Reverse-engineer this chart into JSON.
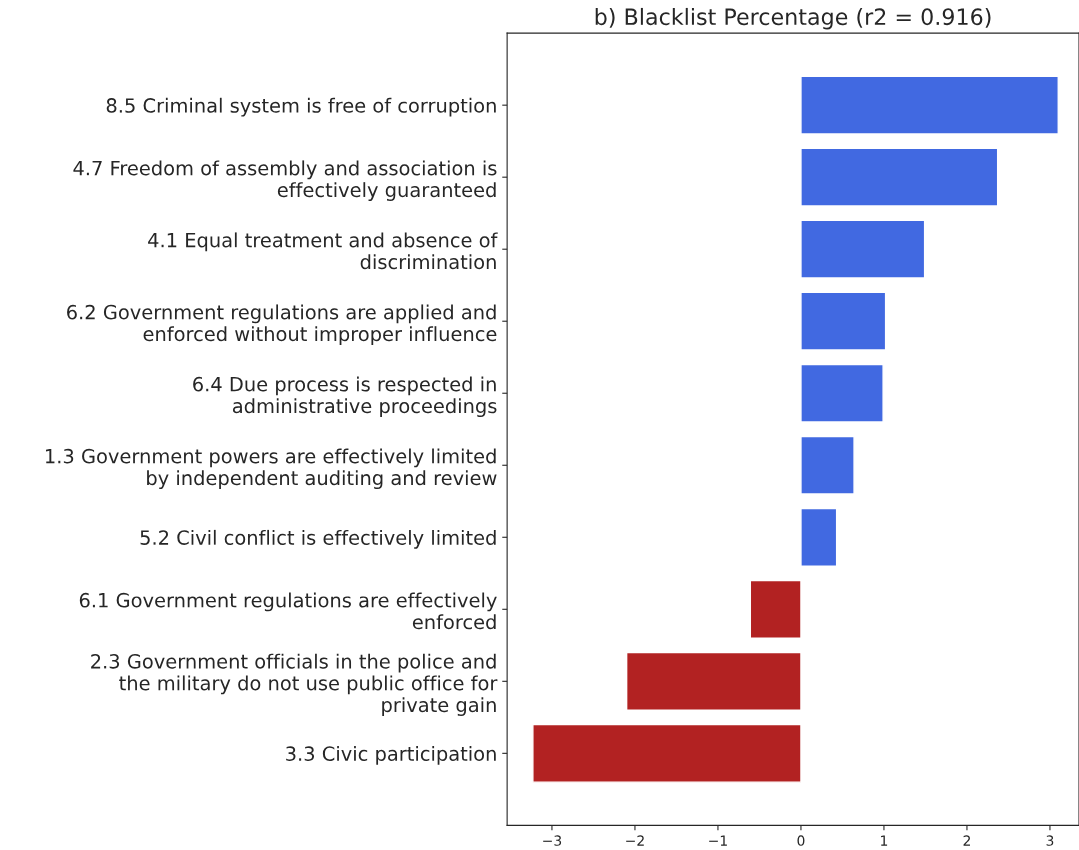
{
  "chart_data": {
    "type": "bar",
    "orientation": "horizontal",
    "title": "b) Blacklist Percentage (r2 = 0.916)",
    "categories": [
      "8.5 Criminal system is free of corruption",
      "4.7 Freedom of assembly and association is\neffectively guaranteed",
      "4.1 Equal treatment and absence of\ndiscrimination",
      "6.2 Government regulations are applied and\nenforced without improper influence",
      "6.4 Due process is respected in\nadministrative proceedings",
      "1.3 Government powers are effectively limited\nby independent auditing and review",
      "5.2 Civil conflict is effectively limited",
      "6.1 Government regulations are effectively\nenforced",
      "2.3 Government officials in the police and\nthe military do not use public office for\nprivate gain",
      "3.3 Civic participation"
    ],
    "values": [
      3.1,
      2.37,
      1.49,
      1.02,
      0.99,
      0.64,
      0.43,
      -0.61,
      -2.1,
      -3.23
    ],
    "colors": [
      "#4169e1",
      "#4169e1",
      "#4169e1",
      "#4169e1",
      "#4169e1",
      "#4169e1",
      "#4169e1",
      "#b22222",
      "#b22222",
      "#b22222"
    ],
    "xlim": [
      -3.54,
      3.35
    ],
    "xticks": [
      {
        "value": -3,
        "label": "−3"
      },
      {
        "value": -2,
        "label": "−2"
      },
      {
        "value": -1,
        "label": "−1"
      },
      0,
      1,
      2,
      3
    ],
    "grid": false,
    "legend": false
  }
}
